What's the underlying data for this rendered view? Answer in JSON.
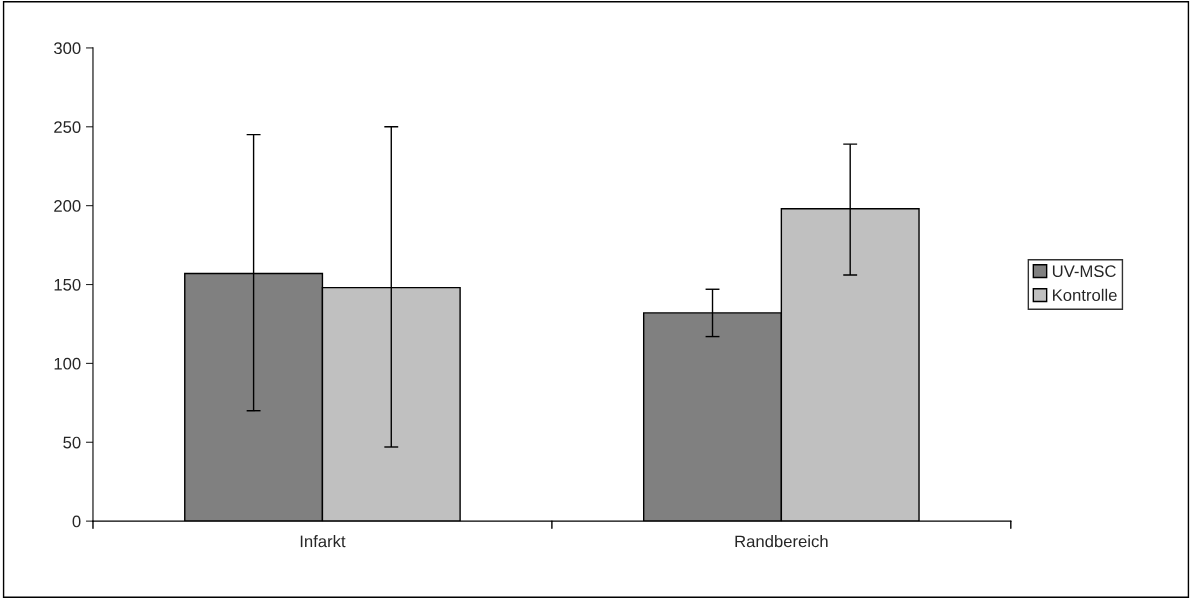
{
  "chart_data": {
    "type": "bar",
    "categories": [
      "Infarkt",
      "Randbereich"
    ],
    "series": [
      {
        "name": "UV-MSC",
        "color": "#808080",
        "values": [
          157,
          132
        ],
        "errors": [
          [
            70,
            245
          ],
          [
            117,
            147
          ]
        ]
      },
      {
        "name": "Kontrolle",
        "color": "#c0c0c0",
        "values": [
          148,
          198
        ],
        "errors": [
          [
            47,
            250
          ],
          [
            156,
            239
          ]
        ]
      }
    ],
    "ylim": [
      0,
      300
    ],
    "yticks": [
      0,
      50,
      100,
      150,
      200,
      250,
      300
    ],
    "grid": false,
    "legend": "right"
  }
}
